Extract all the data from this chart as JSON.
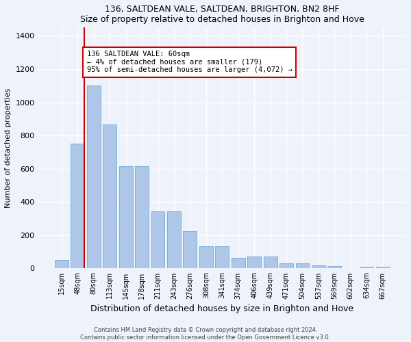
{
  "title": "136, SALTDEAN VALE, SALTDEAN, BRIGHTON, BN2 8HF",
  "subtitle": "Size of property relative to detached houses in Brighton and Hove",
  "xlabel": "Distribution of detached houses by size in Brighton and Hove",
  "ylabel": "Number of detached properties",
  "bar_color": "#aec6e8",
  "bar_edge_color": "#5a9fd4",
  "categories": [
    "15sqm",
    "48sqm",
    "80sqm",
    "113sqm",
    "145sqm",
    "178sqm",
    "211sqm",
    "243sqm",
    "276sqm",
    "308sqm",
    "341sqm",
    "374sqm",
    "406sqm",
    "439sqm",
    "471sqm",
    "504sqm",
    "537sqm",
    "569sqm",
    "602sqm",
    "634sqm",
    "667sqm"
  ],
  "values": [
    50,
    750,
    1100,
    865,
    615,
    615,
    345,
    345,
    225,
    135,
    135,
    65,
    70,
    70,
    30,
    30,
    20,
    15,
    0,
    10,
    10
  ],
  "ylim": [
    0,
    1450
  ],
  "yticks": [
    0,
    200,
    400,
    600,
    800,
    1000,
    1200,
    1400
  ],
  "property_line_x": 1.42,
  "annotation_text": "136 SALTDEAN VALE: 60sqm\n← 4% of detached houses are smaller (179)\n95% of semi-detached houses are larger (4,072) →",
  "annotation_box_color": "#ffffff",
  "annotation_border_color": "#cc0000",
  "red_line_color": "#cc0000",
  "footer1": "Contains HM Land Registry data © Crown copyright and database right 2024.",
  "footer2": "Contains public sector information licensed under the Open Government Licence v3.0.",
  "background_color": "#eef2fb",
  "grid_color": "#ffffff"
}
